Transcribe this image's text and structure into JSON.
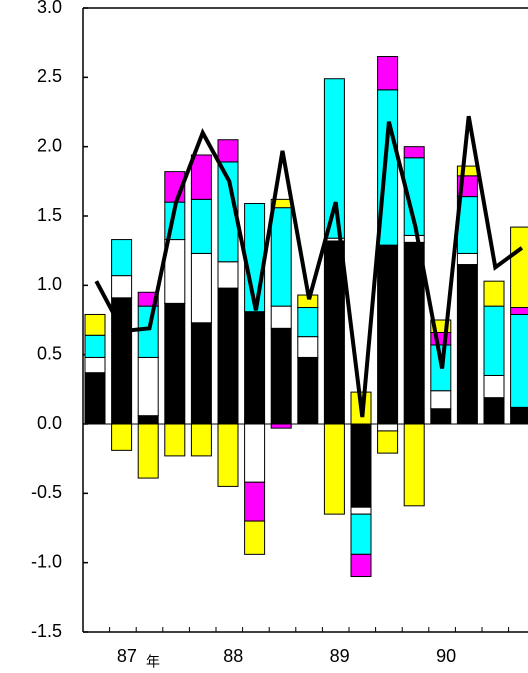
{
  "chart_data": {
    "type": "bar",
    "annotation": "年",
    "categories": [
      null,
      "87",
      null,
      null,
      null,
      "88",
      null,
      null,
      null,
      "89",
      null,
      null,
      null,
      "90",
      null,
      null,
      null
    ],
    "series": [
      {
        "color": "#000000",
        "values": [
          0.37,
          0.91,
          0.06,
          0.87,
          0.73,
          0.98,
          0.81,
          0.69,
          0.48,
          1.32,
          -0.6,
          1.29,
          1.31,
          0.11,
          1.15,
          0.19,
          0.12
        ]
      },
      {
        "color": "#ffffff",
        "values": [
          0.11,
          0.16,
          0.42,
          0.46,
          0.5,
          0.19,
          -0.42,
          0.16,
          0.15,
          0.02,
          -0.05,
          -0.05,
          0.05,
          0.13,
          0.08,
          0.16,
          0
        ]
      },
      {
        "color": "#00ffff",
        "values": [
          0.16,
          0.26,
          0.37,
          0.27,
          0.39,
          0.72,
          0.78,
          0.71,
          0.21,
          1.15,
          -0.29,
          1.12,
          0.56,
          0.33,
          0.41,
          0.5,
          0.67
        ]
      },
      {
        "color": "#ff00ff",
        "values": [
          0,
          0,
          0.1,
          0.22,
          0.32,
          0.16,
          -0.28,
          -0.03,
          0,
          0,
          -0.16,
          0.24,
          0.08,
          0.09,
          0.15,
          0,
          0.05
        ]
      },
      {
        "color": "#ffff00",
        "values": [
          0.15,
          -0.19,
          -0.39,
          -0.23,
          -0.23,
          -0.45,
          -0.24,
          0.06,
          0.09,
          -0.65,
          0.23,
          -0.16,
          -0.59,
          0.09,
          0.07,
          0.18,
          0.58
        ]
      }
    ],
    "line": {
      "color": "#000000",
      "values": [
        1.03,
        0.67,
        0.69,
        1.6,
        2.1,
        1.75,
        0.82,
        1.97,
        0.9,
        1.6,
        0.05,
        2.18,
        1.42,
        0.4,
        2.22,
        1.13,
        1.27
      ]
    },
    "ylim": [
      -1.5,
      3.0
    ],
    "yticks": [
      {
        "value": -1.5,
        "label": "-1.5"
      },
      {
        "value": -1.0,
        "label": "-1.0"
      },
      {
        "value": -0.5,
        "label": "-0.5"
      },
      {
        "value": 0,
        "label": "0.0"
      },
      {
        "value": 0.5,
        "label": "0.5"
      },
      {
        "value": 1.0,
        "label": "1.0"
      },
      {
        "value": 1.5,
        "label": "1.5"
      },
      {
        "value": 2.0,
        "label": "2.0"
      },
      {
        "value": 2.5,
        "label": "2.5"
      },
      {
        "value": 3.0,
        "label": "3.0"
      }
    ]
  }
}
